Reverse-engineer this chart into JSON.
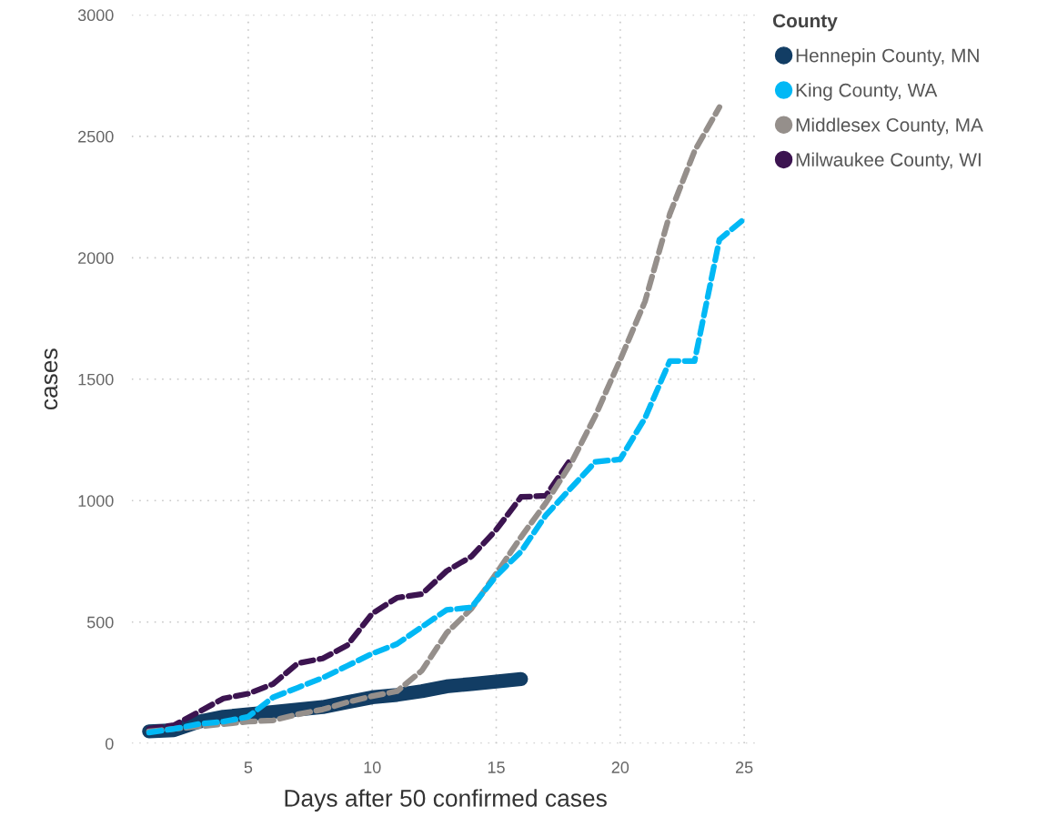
{
  "chart_data": {
    "type": "line",
    "xlabel": "Days after 50 confirmed cases",
    "ylabel": "cases",
    "legend_title": "County",
    "x": [
      1,
      2,
      3,
      4,
      5,
      6,
      7,
      8,
      9,
      10,
      11,
      12,
      13,
      14,
      15,
      16,
      17,
      18,
      19,
      20,
      21,
      22,
      23,
      24,
      25
    ],
    "series": [
      {
        "name": "Hennepin County, MN",
        "color": "#123d64",
        "line_style": "solid",
        "values": [
          50,
          55,
          90,
          110,
          120,
          130,
          140,
          150,
          170,
          190,
          200,
          215,
          235,
          245,
          255,
          265,
          null,
          null,
          null,
          null,
          null,
          null,
          null,
          null,
          null
        ]
      },
      {
        "name": "King County, WA",
        "color": "#01b8f5",
        "line_style": "dashed",
        "values": [
          45,
          60,
          80,
          90,
          110,
          190,
          230,
          270,
          320,
          370,
          410,
          480,
          550,
          560,
          690,
          790,
          940,
          1050,
          1160,
          1170,
          1340,
          1575,
          1575,
          2075,
          2160
        ]
      },
      {
        "name": "Middlesex County, MA",
        "color": "#958f8b",
        "line_style": "dashed",
        "values": [
          50,
          60,
          70,
          80,
          90,
          95,
          120,
          140,
          170,
          195,
          215,
          300,
          455,
          555,
          700,
          850,
          990,
          1150,
          1350,
          1580,
          1820,
          2180,
          2440,
          2620,
          null
        ]
      },
      {
        "name": "Milwaukee County, WI",
        "color": "#3c1450",
        "line_style": "dashed",
        "values": [
          60,
          75,
          130,
          185,
          205,
          245,
          330,
          350,
          405,
          535,
          600,
          615,
          710,
          770,
          880,
          1015,
          1020,
          1170,
          null,
          null,
          null,
          null,
          null,
          null,
          null
        ]
      }
    ],
    "xlim": [
      0.3,
      25.6
    ],
    "ylim": [
      0,
      3000
    ],
    "xticks": [
      5,
      10,
      15,
      20,
      25
    ],
    "yticks": [
      0,
      500,
      1000,
      1500,
      2000,
      2500,
      3000
    ],
    "grid": true,
    "legend": "top right",
    "marker": "none"
  }
}
